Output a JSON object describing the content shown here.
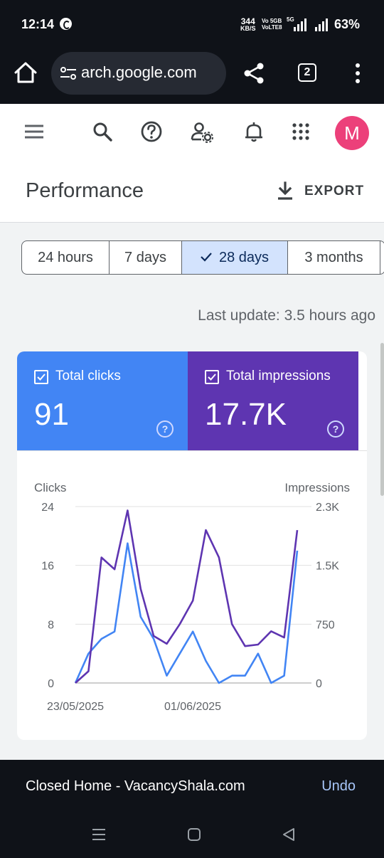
{
  "status_bar": {
    "time": "12:14",
    "net_speed": "344",
    "net_unit": "KB/S",
    "volte_top": "Vo 5GB",
    "volte_bottom": "VoLTE8",
    "network_5g": "5G",
    "battery": "63%"
  },
  "browser": {
    "url": "search.google.com",
    "url_visible": "​arch.google.com",
    "tab_count": "2",
    "icons": [
      "home-icon",
      "site-settings-icon",
      "share-icon",
      "tabs-icon",
      "more-vert-icon"
    ]
  },
  "app_header": {
    "avatar_letter": "M",
    "avatar_color": "#ec407a",
    "icons": [
      "menu-icon",
      "search-icon",
      "help-icon",
      "manage-users-icon",
      "notifications-icon",
      "apps-icon"
    ],
    "title": "Performance",
    "export_label": "EXPORT"
  },
  "date_range": {
    "options": [
      {
        "label": "24 hours",
        "selected": false
      },
      {
        "label": "7 days",
        "selected": false
      },
      {
        "label": "28 days",
        "selected": true
      },
      {
        "label": "3 months",
        "selected": false
      }
    ]
  },
  "last_update": "Last update: 3.5 hours ago",
  "metrics": {
    "clicks": {
      "label": "Total clicks",
      "value": "91",
      "color": "#4285f4",
      "checked": true
    },
    "impressions": {
      "label": "Total impressions",
      "value": "17.7K",
      "color": "#5e35b1",
      "checked": true
    }
  },
  "chart_data": {
    "type": "line",
    "x_tick_labels": [
      "23/05/2025",
      "01/06/2025"
    ],
    "left_axis": {
      "label": "Clicks",
      "ticks": [
        "24",
        "16",
        "8",
        "0"
      ],
      "ylim": [
        0,
        24
      ]
    },
    "right_axis": {
      "label": "Impressions",
      "ticks": [
        "2.3K",
        "1.5K",
        "750",
        "0"
      ],
      "ylim": [
        0,
        2250
      ]
    },
    "grid": true,
    "series": [
      {
        "name": "Clicks",
        "axis": "left",
        "color": "#4285f4",
        "values": [
          0,
          4,
          6,
          7,
          19,
          9,
          6,
          1,
          4,
          7,
          3,
          0,
          1,
          1,
          4,
          0,
          1,
          18
        ]
      },
      {
        "name": "Impressions",
        "axis": "right",
        "color": "#5e35b1",
        "values": [
          0,
          150,
          1600,
          1450,
          2200,
          1200,
          600,
          500,
          750,
          1050,
          1950,
          1600,
          750,
          470,
          490,
          660,
          580,
          1950
        ]
      }
    ]
  },
  "snackbar": {
    "message": "Closed Home - VacancyShala.com",
    "action": "Undo"
  }
}
